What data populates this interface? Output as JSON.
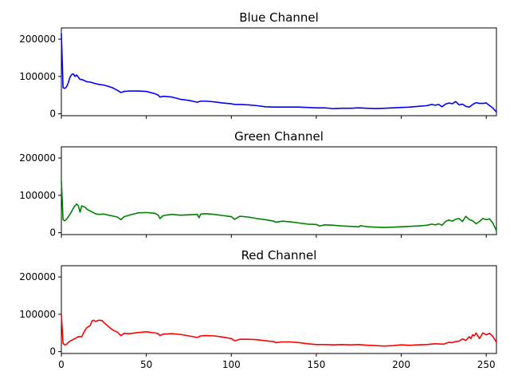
{
  "chart_data": [
    {
      "type": "line",
      "title": "Blue Channel",
      "color": "#0000ff",
      "xlim": [
        0,
        256
      ],
      "ylim": [
        -5000,
        230000
      ],
      "xticks": [
        0,
        50,
        100,
        150,
        200,
        250
      ],
      "xtick_labels": [
        "",
        "",
        "",
        "",
        "",
        ""
      ],
      "yticks": [
        0,
        100000,
        200000
      ],
      "ytick_labels": [
        "0",
        "100000",
        "200000"
      ],
      "x": [
        0,
        1,
        2,
        3,
        4,
        5,
        6,
        7,
        8,
        9,
        10,
        11,
        12,
        13,
        14,
        15,
        17,
        20,
        22,
        25,
        28,
        30,
        33,
        35,
        37,
        40,
        45,
        50,
        55,
        57,
        58,
        60,
        65,
        70,
        75,
        80,
        82,
        85,
        90,
        95,
        100,
        102,
        105,
        110,
        115,
        120,
        125,
        130,
        135,
        140,
        145,
        150,
        155,
        160,
        165,
        170,
        175,
        180,
        185,
        190,
        195,
        200,
        205,
        210,
        215,
        218,
        220,
        222,
        224,
        226,
        228,
        230,
        232,
        234,
        236,
        238,
        240,
        242,
        244,
        246,
        248,
        250,
        252,
        254,
        256
      ],
      "y": [
        215000,
        70000,
        68000,
        72000,
        82000,
        97000,
        105000,
        107000,
        100000,
        104000,
        98000,
        92000,
        92000,
        90000,
        88000,
        86000,
        85000,
        81000,
        79000,
        77000,
        73000,
        70000,
        63000,
        57000,
        60000,
        61000,
        61000,
        60000,
        54000,
        50000,
        45000,
        47000,
        45000,
        39000,
        36000,
        31000,
        34000,
        34000,
        32000,
        29000,
        27000,
        25000,
        25000,
        24000,
        22000,
        19000,
        18000,
        18000,
        18000,
        18000,
        17000,
        16000,
        16000,
        14000,
        15000,
        15000,
        16000,
        15000,
        14000,
        15000,
        16000,
        17000,
        18000,
        20000,
        22000,
        25000,
        23000,
        25000,
        19000,
        26000,
        29000,
        27000,
        33000,
        24000,
        26000,
        20000,
        18000,
        25000,
        30000,
        28000,
        28000,
        29000,
        22000,
        15000,
        5000
      ]
    },
    {
      "type": "line",
      "title": "Green Channel",
      "color": "#008000",
      "xlim": [
        0,
        256
      ],
      "ylim": [
        -5000,
        230000
      ],
      "xticks": [
        0,
        50,
        100,
        150,
        200,
        250
      ],
      "xtick_labels": [
        "",
        "",
        "",
        "",
        "",
        ""
      ],
      "yticks": [
        0,
        100000,
        200000
      ],
      "ytick_labels": [
        "0",
        "100000",
        "200000"
      ],
      "x": [
        0,
        1,
        2,
        3,
        4,
        5,
        6,
        7,
        8,
        9,
        10,
        11,
        12,
        13,
        14,
        15,
        17,
        20,
        22,
        25,
        28,
        30,
        33,
        35,
        37,
        40,
        45,
        50,
        55,
        57,
        58,
        60,
        65,
        70,
        75,
        80,
        81,
        82,
        85,
        90,
        95,
        100,
        102,
        105,
        110,
        115,
        120,
        125,
        126,
        130,
        135,
        140,
        145,
        150,
        152,
        155,
        160,
        165,
        170,
        175,
        176,
        180,
        185,
        190,
        195,
        200,
        205,
        210,
        215,
        218,
        220,
        222,
        224,
        226,
        228,
        230,
        232,
        234,
        236,
        238,
        240,
        242,
        244,
        246,
        248,
        250,
        252,
        254,
        256
      ],
      "y": [
        140000,
        35000,
        32000,
        36000,
        42000,
        49000,
        57000,
        65000,
        72000,
        77000,
        72000,
        55000,
        72000,
        70000,
        68000,
        63000,
        58000,
        51000,
        49000,
        50000,
        47000,
        45000,
        42000,
        35000,
        43000,
        47000,
        53000,
        54000,
        52000,
        47000,
        38000,
        46000,
        49000,
        47000,
        48000,
        49000,
        40000,
        50000,
        51000,
        49000,
        46000,
        43000,
        36000,
        44000,
        42000,
        38000,
        35000,
        31000,
        28000,
        31000,
        29000,
        26000,
        23000,
        22000,
        18000,
        21000,
        20000,
        18000,
        17000,
        16000,
        19000,
        16000,
        15000,
        14000,
        15000,
        16000,
        17000,
        18000,
        20000,
        23000,
        21000,
        24000,
        20000,
        30000,
        34000,
        31000,
        36000,
        38000,
        30000,
        44000,
        35000,
        32000,
        24000,
        30000,
        38000,
        35000,
        37000,
        25000,
        5000
      ]
    },
    {
      "type": "line",
      "title": "Red Channel",
      "color": "#ff0000",
      "xlim": [
        0,
        256
      ],
      "ylim": [
        -5000,
        230000
      ],
      "xticks": [
        0,
        50,
        100,
        150,
        200,
        250
      ],
      "xtick_labels": [
        "0",
        "50",
        "100",
        "150",
        "200",
        "250"
      ],
      "yticks": [
        0,
        100000,
        200000
      ],
      "ytick_labels": [
        "0",
        "100000",
        "200000"
      ],
      "x": [
        0,
        1,
        2,
        3,
        4,
        5,
        6,
        8,
        10,
        12,
        14,
        15,
        16,
        17,
        18,
        19,
        20,
        22,
        24,
        25,
        27,
        29,
        31,
        33,
        35,
        37,
        40,
        45,
        50,
        55,
        57,
        58,
        60,
        65,
        70,
        75,
        80,
        82,
        85,
        90,
        95,
        100,
        102,
        105,
        110,
        115,
        120,
        125,
        126,
        130,
        135,
        140,
        145,
        150,
        155,
        160,
        165,
        170,
        175,
        180,
        185,
        190,
        195,
        200,
        205,
        210,
        215,
        220,
        225,
        228,
        230,
        232,
        234,
        236,
        238,
        240,
        241,
        242,
        243,
        244,
        246,
        248,
        250,
        252,
        254,
        256
      ],
      "y": [
        100000,
        22000,
        18000,
        19000,
        24000,
        28000,
        30000,
        35000,
        40000,
        40000,
        58000,
        64000,
        67000,
        70000,
        82000,
        84000,
        81000,
        84000,
        83000,
        78000,
        70000,
        62000,
        56000,
        52000,
        43000,
        49000,
        48000,
        51000,
        53000,
        50000,
        48000,
        43000,
        47000,
        48000,
        46000,
        42000,
        38000,
        42000,
        43000,
        42000,
        39000,
        35000,
        29000,
        33000,
        33000,
        32000,
        29000,
        27000,
        24000,
        26000,
        26000,
        24000,
        21000,
        19000,
        19000,
        18000,
        19000,
        18000,
        19000,
        17000,
        16000,
        15000,
        16000,
        18000,
        17000,
        18000,
        19000,
        21000,
        20000,
        25000,
        24000,
        27000,
        28000,
        34000,
        30000,
        40000,
        35000,
        45000,
        42000,
        50000,
        35000,
        50000,
        45000,
        49000,
        40000,
        25000
      ]
    }
  ]
}
